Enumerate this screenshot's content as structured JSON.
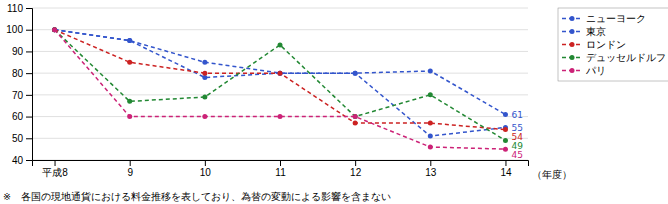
{
  "chart_data": {
    "type": "line",
    "categories": [
      "平成8",
      "9",
      "10",
      "11",
      "12",
      "13",
      "14"
    ],
    "x_label": "（年度）",
    "series": [
      {
        "name": "ニューヨーク",
        "color": "#3355cc",
        "values": [
          100,
          95,
          85,
          80,
          80,
          81,
          61
        ]
      },
      {
        "name": "東京",
        "color": "#3355cc",
        "values": [
          100,
          95,
          78,
          80,
          80,
          51,
          55
        ]
      },
      {
        "name": "ロンドン",
        "color": "#cc2222",
        "values": [
          100,
          85,
          80,
          80,
          57,
          57,
          54
        ]
      },
      {
        "name": "デュッセルドルフ",
        "color": "#228833",
        "values": [
          100,
          67,
          69,
          93,
          60,
          70,
          49
        ]
      },
      {
        "name": "パリ",
        "color": "#cc2277",
        "values": [
          100,
          60,
          60,
          60,
          60,
          46,
          45
        ]
      }
    ],
    "end_labels": [
      61,
      55,
      54,
      49,
      45
    ],
    "ylim": [
      40,
      110
    ],
    "yticks": [
      40,
      50,
      60,
      70,
      80,
      90,
      100,
      110
    ],
    "grid": true,
    "legend": "right",
    "marker": "circle",
    "line_style": "dashed",
    "footnote": "※　各国の現地通貨における料金推移を表しており、為替の変動による影響を含まない"
  }
}
